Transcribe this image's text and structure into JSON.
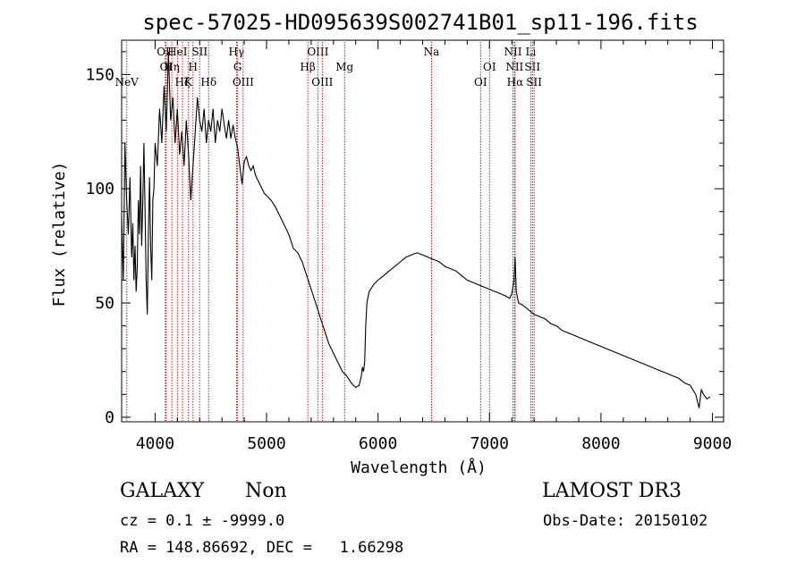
{
  "chart_data": {
    "type": "line",
    "title": "spec-57025-HD095639S002741B01_sp11-196.fits",
    "xlabel": "Wavelength (Å)",
    "ylabel": "Flux (relative)",
    "xlim": [
      3700,
      9100
    ],
    "ylim": [
      -2,
      165
    ],
    "x_ticks": [
      4000,
      5000,
      6000,
      7000,
      8000,
      9000
    ],
    "y_ticks": [
      0,
      50,
      100,
      150
    ],
    "grid": false,
    "line_color": "#000000",
    "marker_color": "#cc0000",
    "series": [
      {
        "points": [
          [
            3700,
            88
          ],
          [
            3715,
            60
          ],
          [
            3730,
            120
          ],
          [
            3745,
            95
          ],
          [
            3760,
            80
          ],
          [
            3775,
            105
          ],
          [
            3790,
            70
          ],
          [
            3800,
            85
          ],
          [
            3810,
            60
          ],
          [
            3820,
            75
          ],
          [
            3830,
            55
          ],
          [
            3840,
            65
          ],
          [
            3850,
            95
          ],
          [
            3860,
            80
          ],
          [
            3870,
            110
          ],
          [
            3880,
            75
          ],
          [
            3890,
            95
          ],
          [
            3900,
            120
          ],
          [
            3910,
            90
          ],
          [
            3920,
            60
          ],
          [
            3930,
            45
          ],
          [
            3940,
            80
          ],
          [
            3950,
            105
          ],
          [
            3960,
            75
          ],
          [
            3970,
            60
          ],
          [
            3980,
            95
          ],
          [
            3990,
            100
          ],
          [
            4000,
            120
          ],
          [
            4020,
            110
          ],
          [
            4040,
            135
          ],
          [
            4060,
            120
          ],
          [
            4080,
            145
          ],
          [
            4100,
            125
          ],
          [
            4120,
            160
          ],
          [
            4140,
            130
          ],
          [
            4160,
            140
          ],
          [
            4180,
            120
          ],
          [
            4200,
            135
          ],
          [
            4220,
            115
          ],
          [
            4240,
            125
          ],
          [
            4260,
            110
          ],
          [
            4280,
            130
          ],
          [
            4300,
            115
          ],
          [
            4320,
            95
          ],
          [
            4340,
            110
          ],
          [
            4360,
            125
          ],
          [
            4380,
            140
          ],
          [
            4400,
            130
          ],
          [
            4420,
            125
          ],
          [
            4440,
            135
          ],
          [
            4460,
            120
          ],
          [
            4480,
            130
          ],
          [
            4500,
            125
          ],
          [
            4520,
            135
          ],
          [
            4540,
            120
          ],
          [
            4560,
            130
          ],
          [
            4580,
            125
          ],
          [
            4600,
            135
          ],
          [
            4620,
            128
          ],
          [
            4640,
            122
          ],
          [
            4660,
            130
          ],
          [
            4680,
            122
          ],
          [
            4700,
            128
          ],
          [
            4720,
            122
          ],
          [
            4740,
            118
          ],
          [
            4760,
            110
          ],
          [
            4780,
            102
          ],
          [
            4800,
            112
          ],
          [
            4820,
            114
          ],
          [
            4840,
            110
          ],
          [
            4860,
            108
          ],
          [
            4880,
            110
          ],
          [
            4900,
            106
          ],
          [
            4920,
            104
          ],
          [
            4940,
            102
          ],
          [
            4960,
            100
          ],
          [
            4980,
            98
          ],
          [
            5000,
            97
          ],
          [
            5040,
            95
          ],
          [
            5080,
            92
          ],
          [
            5120,
            88
          ],
          [
            5160,
            84
          ],
          [
            5200,
            80
          ],
          [
            5240,
            74
          ],
          [
            5280,
            72
          ],
          [
            5320,
            68
          ],
          [
            5360,
            62
          ],
          [
            5400,
            56
          ],
          [
            5440,
            50
          ],
          [
            5480,
            44
          ],
          [
            5520,
            38
          ],
          [
            5560,
            32
          ],
          [
            5600,
            28
          ],
          [
            5640,
            24
          ],
          [
            5680,
            20
          ],
          [
            5720,
            18
          ],
          [
            5760,
            15
          ],
          [
            5800,
            13
          ],
          [
            5830,
            14
          ],
          [
            5850,
            18
          ],
          [
            5860,
            22
          ],
          [
            5870,
            20
          ],
          [
            5880,
            24
          ],
          [
            5890,
            40
          ],
          [
            5900,
            50
          ],
          [
            5920,
            55
          ],
          [
            5960,
            58
          ],
          [
            6000,
            60
          ],
          [
            6050,
            62
          ],
          [
            6100,
            64
          ],
          [
            6150,
            66
          ],
          [
            6200,
            68
          ],
          [
            6250,
            70
          ],
          [
            6300,
            71
          ],
          [
            6350,
            72
          ],
          [
            6400,
            71
          ],
          [
            6450,
            70
          ],
          [
            6500,
            69
          ],
          [
            6550,
            68
          ],
          [
            6600,
            66
          ],
          [
            6650,
            65
          ],
          [
            6700,
            64
          ],
          [
            6750,
            62
          ],
          [
            6800,
            60
          ],
          [
            6850,
            59
          ],
          [
            6900,
            58
          ],
          [
            6950,
            57
          ],
          [
            7000,
            56
          ],
          [
            7050,
            55
          ],
          [
            7100,
            54
          ],
          [
            7150,
            53
          ],
          [
            7180,
            52
          ],
          [
            7200,
            54
          ],
          [
            7220,
            60
          ],
          [
            7230,
            70
          ],
          [
            7240,
            55
          ],
          [
            7260,
            50
          ],
          [
            7300,
            49
          ],
          [
            7350,
            47
          ],
          [
            7400,
            45
          ],
          [
            7450,
            44
          ],
          [
            7500,
            43
          ],
          [
            7550,
            41
          ],
          [
            7600,
            40
          ],
          [
            7650,
            38
          ],
          [
            7700,
            37
          ],
          [
            7750,
            36
          ],
          [
            7800,
            35
          ],
          [
            7850,
            34
          ],
          [
            7900,
            33
          ],
          [
            7950,
            32
          ],
          [
            8000,
            31
          ],
          [
            8050,
            30
          ],
          [
            8100,
            29
          ],
          [
            8150,
            28
          ],
          [
            8200,
            27
          ],
          [
            8250,
            26
          ],
          [
            8300,
            25
          ],
          [
            8350,
            24
          ],
          [
            8400,
            23
          ],
          [
            8450,
            22
          ],
          [
            8500,
            21
          ],
          [
            8550,
            20
          ],
          [
            8600,
            19
          ],
          [
            8650,
            18
          ],
          [
            8700,
            17
          ],
          [
            8750,
            15
          ],
          [
            8800,
            14
          ],
          [
            8850,
            10
          ],
          [
            8880,
            4
          ],
          [
            8900,
            12
          ],
          [
            8920,
            10
          ],
          [
            8950,
            8
          ],
          [
            8980,
            9
          ]
        ]
      }
    ],
    "line_markers": [
      {
        "wavelength": 3746,
        "label": "NeV",
        "row": 3
      },
      {
        "wavelength": 4092,
        "label": "OII",
        "row": 1
      },
      {
        "wavelength": 4100,
        "label": "OI",
        "row": 2
      },
      {
        "wavelength": 4150,
        "label": "Hη",
        "row": 2
      },
      {
        "wavelength": 4200,
        "label": "HeI",
        "row": 1
      },
      {
        "wavelength": 4245,
        "label": "Hζ",
        "row": 3
      },
      {
        "wavelength": 4300,
        "label": "K",
        "row": 3
      },
      {
        "wavelength": 4340,
        "label": "H",
        "row": 2
      },
      {
        "wavelength": 4400,
        "label": "SII",
        "row": 1
      },
      {
        "wavelength": 4480,
        "label": "Hδ",
        "row": 3
      },
      {
        "wavelength": 4730,
        "label": "Hγ",
        "row": 1
      },
      {
        "wavelength": 4740,
        "label": "G",
        "row": 2
      },
      {
        "wavelength": 4790,
        "label": "OIII",
        "row": 3
      },
      {
        "wavelength": 5370,
        "label": "Hβ",
        "row": 2
      },
      {
        "wavelength": 5460,
        "label": "OIII",
        "row": 1
      },
      {
        "wavelength": 5500,
        "label": "OIII",
        "row": 3
      },
      {
        "wavelength": 5700,
        "label": "Mg",
        "row": 2
      },
      {
        "wavelength": 6480,
        "label": "Na",
        "row": 1
      },
      {
        "wavelength": 6920,
        "label": "OI",
        "row": 3
      },
      {
        "wavelength": 7000,
        "label": "OI",
        "row": 2
      },
      {
        "wavelength": 7210,
        "label": "NII",
        "row": 1
      },
      {
        "wavelength": 7225,
        "label": "NII",
        "row": 2
      },
      {
        "wavelength": 7230,
        "label": "Hα",
        "row": 3
      },
      {
        "wavelength": 7370,
        "label": "Li",
        "row": 1
      },
      {
        "wavelength": 7385,
        "label": "SII",
        "row": 2
      },
      {
        "wavelength": 7400,
        "label": "SII",
        "row": 3
      }
    ]
  },
  "info": {
    "object_type": "GALAXY",
    "subclass": "Non",
    "survey": "LAMOST DR3",
    "redshift_line": "cz = 0.1 ± -9999.0",
    "obs_date": "Obs-Date: 20150102",
    "coords": "RA = 148.86692, DEC =   1.66298"
  }
}
